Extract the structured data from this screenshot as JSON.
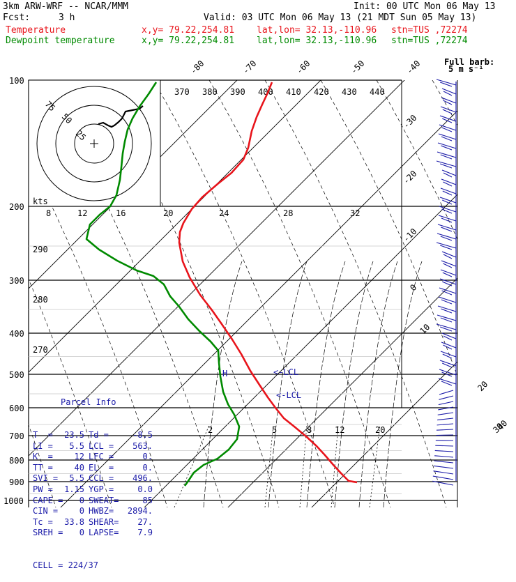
{
  "header": {
    "model": "3km ARW-WRF -- NCAR/MMM",
    "init": "Init: 00 UTC Mon 06 May 13",
    "fcst_label": "Fcst:",
    "fcst_value": "3 h",
    "valid": "Valid: 03 UTC Mon 06 May 13 (21 MDT Sun 05 May 13)",
    "temp_label": "Temperature",
    "dew_label": "Dewpoint temperature",
    "xy": "x,y= 79.22,254.81",
    "latlon": "lat,lon= 32.13,-110.96",
    "stn": "stn=TUS ,72274"
  },
  "barb_key": {
    "line1": "Full barb:",
    "line2": "5 m s⁻¹"
  },
  "colors": {
    "temperature": "#e8141b",
    "dewpoint": "#008a00",
    "parcel_text": "#1a1aa8",
    "grid": "#000000"
  },
  "chart_data": {
    "type": "line",
    "pressure_levels": [
      "100",
      "200",
      "300",
      "400",
      "500",
      "600",
      "700",
      "800",
      "900",
      "1000"
    ],
    "isotherm_labels": [
      "-80",
      "-70",
      "-60",
      "-50",
      "-40",
      "-30",
      "-20",
      "-10",
      "0",
      "10",
      "20",
      "30",
      "40"
    ],
    "theta_labels": [
      "370",
      "380",
      "390",
      "400",
      "410",
      "420",
      "430",
      "440",
      "290",
      "280",
      "270"
    ],
    "mixing_ratio_labels": [
      "2",
      "5",
      "8",
      "12",
      "20"
    ],
    "hodo_ring_labels": [
      "75",
      "50",
      "25"
    ],
    "hodo_axis_label": "kts",
    "hodo_speed_ticks": [
      "8",
      "12",
      "16",
      "20",
      "24",
      "28",
      "32"
    ],
    "lcl_labels": [
      "<-LCL",
      "<-LCL"
    ],
    "el_marker": "H",
    "series": [
      {
        "name": "Temperature",
        "points": [
          [
            390,
            118
          ],
          [
            384,
            133
          ],
          [
            376,
            150
          ],
          [
            368,
            168
          ],
          [
            361,
            188
          ],
          [
            356,
            212
          ],
          [
            349,
            229
          ],
          [
            332,
            248
          ],
          [
            312,
            264
          ],
          [
            290,
            283
          ],
          [
            275,
            300
          ],
          [
            263,
            320
          ],
          [
            258,
            333
          ],
          [
            257,
            348
          ],
          [
            262,
            375
          ],
          [
            272,
            398
          ],
          [
            287,
            423
          ],
          [
            304,
            445
          ],
          [
            318,
            465
          ],
          [
            333,
            487
          ],
          [
            346,
            508
          ],
          [
            359,
            532
          ],
          [
            372,
            552
          ],
          [
            384,
            570
          ],
          [
            395,
            585
          ],
          [
            407,
            600
          ],
          [
            422,
            612
          ],
          [
            440,
            627
          ],
          [
            454,
            640
          ],
          [
            466,
            653
          ],
          [
            478,
            667
          ],
          [
            490,
            680
          ],
          [
            500,
            690
          ],
          [
            512,
            692
          ]
        ]
      },
      {
        "name": "Dewpoint temperature",
        "points": [
          [
            224,
            118
          ],
          [
            213,
            135
          ],
          [
            200,
            153
          ],
          [
            190,
            170
          ],
          [
            183,
            186
          ],
          [
            179,
            203
          ],
          [
            176,
            220
          ],
          [
            174,
            240
          ],
          [
            172,
            258
          ],
          [
            167,
            280
          ],
          [
            158,
            296
          ],
          [
            143,
            308
          ],
          [
            129,
            322
          ],
          [
            124,
            343
          ],
          [
            142,
            358
          ],
          [
            168,
            374
          ],
          [
            196,
            388
          ],
          [
            220,
            396
          ],
          [
            235,
            408
          ],
          [
            244,
            425
          ],
          [
            257,
            440
          ],
          [
            270,
            458
          ],
          [
            286,
            475
          ],
          [
            302,
            490
          ],
          [
            313,
            503
          ],
          [
            314,
            520
          ],
          [
            316,
            540
          ],
          [
            320,
            562
          ],
          [
            327,
            580
          ],
          [
            336,
            595
          ],
          [
            343,
            612
          ],
          [
            340,
            630
          ],
          [
            328,
            645
          ],
          [
            312,
            658
          ],
          [
            292,
            667
          ],
          [
            278,
            678
          ],
          [
            270,
            690
          ],
          [
            265,
            697
          ]
        ]
      }
    ],
    "hodograph": {
      "trace": [
        [
          141,
          178
        ],
        [
          148,
          176
        ],
        [
          155,
          180
        ],
        [
          160,
          182
        ],
        [
          164,
          180
        ],
        [
          170,
          175
        ],
        [
          175,
          170
        ],
        [
          180,
          160
        ],
        [
          190,
          158
        ],
        [
          200,
          156
        ],
        [
          205,
          152
        ]
      ]
    }
  },
  "parcel": {
    "title": "Parcel Info",
    "rows": [
      [
        "T  =",
        "23.5",
        "Td =",
        "-8.5"
      ],
      [
        "LI =",
        "5.5",
        "LCL =",
        "563."
      ],
      [
        "K  =",
        "12",
        "LFC =",
        "0."
      ],
      [
        "TT =",
        "40",
        "EL  =",
        "0."
      ],
      [
        "SVI =",
        "5.5",
        "CCL =",
        "496."
      ],
      [
        "PW =",
        "1.15",
        "YGP =",
        "0.0"
      ],
      [
        "CAPE =",
        "0",
        "SWEAT=",
        "85"
      ],
      [
        "CIN =",
        "0",
        "HWBZ=",
        "2894."
      ],
      [
        "Tc =",
        "33.8",
        "SHEAR=",
        "27."
      ],
      [
        "SREH =",
        "0",
        "LAPSE=",
        "7.9"
      ]
    ],
    "cell": "CELL = 224/37"
  }
}
